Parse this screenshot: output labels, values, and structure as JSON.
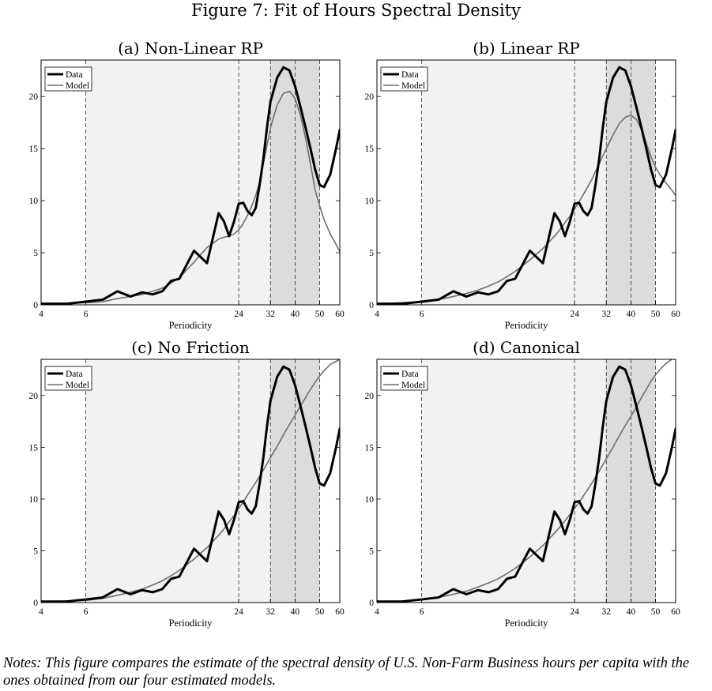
{
  "figure": {
    "title": "Figure 7: Fit of Hours Spectral Density",
    "notes": "Notes: This figure compares the estimate of the spectral density of U.S. Non-Farm Business hours per capita with the ones obtained from our four estimated models."
  },
  "colors": {
    "data_line": "#000000",
    "model_line": "#6e6e6e",
    "light_band": "#f2f2f2",
    "dark_band": "#dcdcdc"
  },
  "chart_data": [
    {
      "type": "line",
      "title": "(a) Non-Linear RP",
      "xlabel": "Periodicity",
      "ylabel": "",
      "x_scale": "log",
      "xlim": [
        4,
        60
      ],
      "ylim": [
        0,
        23.5
      ],
      "x_ticks": [
        4,
        6,
        24,
        32,
        40,
        50,
        60
      ],
      "y_ticks": [
        0,
        5,
        10,
        15,
        20
      ],
      "vertical_lines": [
        6,
        24,
        32,
        40,
        50
      ],
      "shaded_bands": [
        {
          "from": 6,
          "to": 50,
          "shade": "light"
        },
        {
          "from": 32,
          "to": 50,
          "shade": "dark"
        }
      ],
      "legend": {
        "position": "top-left",
        "entries": [
          "Data",
          "Model"
        ]
      },
      "x": [
        4,
        5,
        6,
        7,
        8,
        9,
        10,
        11,
        12,
        13,
        14,
        16,
        18,
        20,
        21,
        22,
        23,
        24,
        25,
        26,
        27,
        28,
        29,
        30,
        31,
        32,
        34,
        36,
        38,
        40,
        42,
        44,
        46,
        48,
        50,
        52,
        55,
        58,
        60
      ],
      "series": [
        {
          "name": "Data",
          "values": [
            0.1,
            0.1,
            0.3,
            0.5,
            1.3,
            0.8,
            1.2,
            1.0,
            1.3,
            2.3,
            2.5,
            5.2,
            4.0,
            8.8,
            8.0,
            6.6,
            8.0,
            9.7,
            9.8,
            9.0,
            8.6,
            9.3,
            11.5,
            14.0,
            17.0,
            19.5,
            21.8,
            22.8,
            22.5,
            21.0,
            19.0,
            17.0,
            15.0,
            13.0,
            11.5,
            11.3,
            12.5,
            15.0,
            16.8
          ]
        },
        {
          "name": "Model",
          "values": [
            0.1,
            0.15,
            0.2,
            0.3,
            0.6,
            0.8,
            1.0,
            1.3,
            1.6,
            2.1,
            2.6,
            4.1,
            5.5,
            6.3,
            6.5,
            6.6,
            6.8,
            7.2,
            7.8,
            8.6,
            9.5,
            10.5,
            11.8,
            13.5,
            15.3,
            17.0,
            19.2,
            20.3,
            20.5,
            19.8,
            18.2,
            16.0,
            13.5,
            11.0,
            9.5,
            8.2,
            6.8,
            5.8,
            5.1
          ]
        }
      ]
    },
    {
      "type": "line",
      "title": "(b) Linear RP",
      "xlabel": "Periodicity",
      "ylabel": "",
      "x_scale": "log",
      "xlim": [
        4,
        60
      ],
      "ylim": [
        0,
        23.5
      ],
      "x_ticks": [
        4,
        6,
        24,
        32,
        40,
        50,
        60
      ],
      "y_ticks": [
        0,
        5,
        10,
        15,
        20
      ],
      "vertical_lines": [
        6,
        24,
        32,
        40,
        50
      ],
      "shaded_bands": [
        {
          "from": 6,
          "to": 50,
          "shade": "light"
        },
        {
          "from": 32,
          "to": 50,
          "shade": "dark"
        }
      ],
      "legend": {
        "position": "top-left",
        "entries": [
          "Data",
          "Model"
        ]
      },
      "x": [
        4,
        5,
        6,
        7,
        8,
        9,
        10,
        11,
        12,
        13,
        14,
        16,
        18,
        20,
        21,
        22,
        23,
        24,
        25,
        26,
        27,
        28,
        29,
        30,
        31,
        32,
        34,
        36,
        38,
        40,
        42,
        44,
        46,
        48,
        50,
        52,
        55,
        58,
        60
      ],
      "series": [
        {
          "name": "Data",
          "values": [
            0.1,
            0.1,
            0.3,
            0.5,
            1.3,
            0.8,
            1.2,
            1.0,
            1.3,
            2.3,
            2.5,
            5.2,
            4.0,
            8.8,
            8.0,
            6.6,
            8.0,
            9.7,
            9.8,
            9.0,
            8.6,
            9.3,
            11.5,
            14.0,
            17.0,
            19.5,
            21.8,
            22.8,
            22.5,
            21.0,
            19.0,
            17.0,
            15.0,
            13.0,
            11.5,
            11.3,
            12.5,
            15.0,
            16.8
          ]
        },
        {
          "name": "Model",
          "values": [
            0.1,
            0.2,
            0.3,
            0.5,
            0.8,
            1.1,
            1.4,
            1.8,
            2.2,
            2.7,
            3.2,
            4.3,
            5.4,
            6.6,
            7.2,
            7.9,
            8.5,
            9.2,
            9.9,
            10.6,
            11.3,
            12.0,
            12.8,
            13.5,
            14.3,
            15.0,
            16.3,
            17.4,
            18.0,
            18.2,
            17.8,
            16.8,
            15.5,
            14.2,
            13.2,
            12.5,
            11.7,
            11.0,
            10.5
          ]
        }
      ]
    },
    {
      "type": "line",
      "title": "(c) No Friction",
      "xlabel": "Periodicity",
      "ylabel": "",
      "x_scale": "log",
      "xlim": [
        4,
        60
      ],
      "ylim": [
        0,
        23.5
      ],
      "x_ticks": [
        4,
        6,
        24,
        32,
        40,
        50,
        60
      ],
      "y_ticks": [
        0,
        5,
        10,
        15,
        20
      ],
      "vertical_lines": [
        6,
        24,
        32,
        40,
        50
      ],
      "shaded_bands": [
        {
          "from": 6,
          "to": 50,
          "shade": "light"
        },
        {
          "from": 32,
          "to": 50,
          "shade": "dark"
        }
      ],
      "legend": {
        "position": "top-left",
        "entries": [
          "Data",
          "Model"
        ]
      },
      "x": [
        4,
        5,
        6,
        7,
        8,
        9,
        10,
        11,
        12,
        13,
        14,
        16,
        18,
        20,
        21,
        22,
        23,
        24,
        25,
        26,
        27,
        28,
        29,
        30,
        31,
        32,
        34,
        36,
        38,
        40,
        42,
        44,
        46,
        48,
        50,
        52,
        55,
        58,
        60
      ],
      "series": [
        {
          "name": "Data",
          "values": [
            0.1,
            0.1,
            0.3,
            0.5,
            1.3,
            0.8,
            1.2,
            1.0,
            1.3,
            2.3,
            2.5,
            5.2,
            4.0,
            8.8,
            8.0,
            6.6,
            8.0,
            9.7,
            9.8,
            9.0,
            8.6,
            9.3,
            11.5,
            14.0,
            17.0,
            19.5,
            21.8,
            22.8,
            22.5,
            21.0,
            19.0,
            17.0,
            15.0,
            13.0,
            11.5,
            11.3,
            12.5,
            15.0,
            16.8
          ]
        },
        {
          "name": "Model",
          "values": [
            0.1,
            0.15,
            0.2,
            0.4,
            0.7,
            1.0,
            1.3,
            1.7,
            2.1,
            2.6,
            3.1,
            4.2,
            5.3,
            6.5,
            7.1,
            7.8,
            8.4,
            9.1,
            9.7,
            10.4,
            11.0,
            11.6,
            12.2,
            12.8,
            13.4,
            14.0,
            15.1,
            16.2,
            17.2,
            18.1,
            19.0,
            19.8,
            20.6,
            21.3,
            21.9,
            22.4,
            23.0,
            23.3,
            23.5
          ]
        }
      ]
    },
    {
      "type": "line",
      "title": "(d) Canonical",
      "xlabel": "Periodicity",
      "ylabel": "",
      "x_scale": "log",
      "xlim": [
        4,
        60
      ],
      "ylim": [
        0,
        23.5
      ],
      "x_ticks": [
        4,
        6,
        24,
        32,
        40,
        50,
        60
      ],
      "y_ticks": [
        0,
        5,
        10,
        15,
        20
      ],
      "vertical_lines": [
        6,
        24,
        32,
        40,
        50
      ],
      "shaded_bands": [
        {
          "from": 6,
          "to": 50,
          "shade": "light"
        },
        {
          "from": 32,
          "to": 50,
          "shade": "dark"
        }
      ],
      "legend": {
        "position": "top-left",
        "entries": [
          "Data",
          "Model"
        ]
      },
      "x": [
        4,
        5,
        6,
        7,
        8,
        9,
        10,
        11,
        12,
        13,
        14,
        16,
        18,
        20,
        21,
        22,
        23,
        24,
        25,
        26,
        27,
        28,
        29,
        30,
        31,
        32,
        34,
        36,
        38,
        40,
        42,
        44,
        46,
        48,
        50,
        52,
        55,
        58,
        60
      ],
      "series": [
        {
          "name": "Data",
          "values": [
            0.1,
            0.1,
            0.3,
            0.5,
            1.3,
            0.8,
            1.2,
            1.0,
            1.3,
            2.3,
            2.5,
            5.2,
            4.0,
            8.8,
            8.0,
            6.6,
            8.0,
            9.7,
            9.8,
            9.0,
            8.6,
            9.3,
            11.5,
            14.0,
            17.0,
            19.5,
            21.8,
            22.8,
            22.5,
            21.0,
            19.0,
            17.0,
            15.0,
            13.0,
            11.5,
            11.3,
            12.5,
            15.0,
            16.8
          ]
        },
        {
          "name": "Model",
          "values": [
            0.1,
            0.15,
            0.25,
            0.5,
            0.8,
            1.1,
            1.5,
            1.9,
            2.3,
            2.8,
            3.3,
            4.4,
            5.5,
            6.7,
            7.3,
            7.9,
            8.5,
            9.1,
            9.7,
            10.3,
            10.9,
            11.5,
            12.1,
            12.7,
            13.3,
            13.9,
            15.0,
            16.1,
            17.1,
            18.0,
            18.9,
            19.8,
            20.6,
            21.4,
            22.0,
            22.5,
            23.1,
            23.5,
            23.7
          ]
        }
      ]
    }
  ]
}
